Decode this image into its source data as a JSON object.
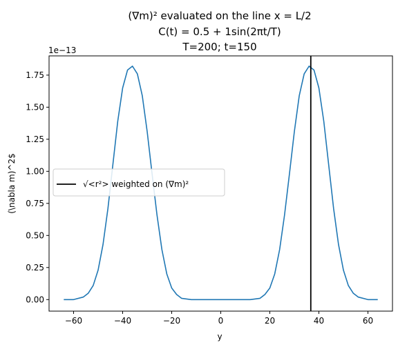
{
  "chart_data": {
    "type": "line",
    "title_lines": [
      "(∇m)² evaluated on the line x = L/2",
      "C(t) = 0.5 + 1sin(2πt/T)",
      "T=200; t=150"
    ],
    "xlabel": "y",
    "ylabel": "(\\nabla m)^2$",
    "y_offset_label": "1e−13",
    "xlim": [
      -70,
      70
    ],
    "ylim": [
      -0.09,
      1.9
    ],
    "xticks": [
      -60,
      -40,
      -20,
      0,
      20,
      40,
      60
    ],
    "xtick_labels": [
      "−60",
      "−40",
      "−20",
      "0",
      "20",
      "40",
      "60"
    ],
    "yticks": [
      0.0,
      0.25,
      0.5,
      0.75,
      1.0,
      1.25,
      1.5,
      1.75
    ],
    "ytick_labels": [
      "0.00",
      "0.25",
      "0.50",
      "0.75",
      "1.00",
      "1.25",
      "1.50",
      "1.75"
    ],
    "series": [
      {
        "color": "#1f77b4",
        "x": [
          -64,
          -60,
          -56,
          -54,
          -52,
          -50,
          -48,
          -46,
          -44,
          -42,
          -40,
          -38,
          -36,
          -34,
          -32,
          -30,
          -28,
          -26,
          -24,
          -22,
          -20,
          -18,
          -16,
          -12,
          -8,
          0,
          8,
          12,
          16,
          18,
          20,
          22,
          24,
          26,
          28,
          30,
          32,
          34,
          36,
          38,
          40,
          42,
          44,
          46,
          48,
          50,
          52,
          54,
          56,
          60,
          64
        ],
        "y": [
          0.0,
          0.0,
          0.02,
          0.05,
          0.11,
          0.23,
          0.43,
          0.71,
          1.05,
          1.39,
          1.65,
          1.79,
          1.82,
          1.76,
          1.59,
          1.31,
          0.98,
          0.66,
          0.39,
          0.2,
          0.09,
          0.04,
          0.01,
          0.0,
          0.0,
          0.0,
          0.0,
          0.0,
          0.01,
          0.04,
          0.09,
          0.2,
          0.39,
          0.66,
          0.98,
          1.31,
          1.59,
          1.76,
          1.82,
          1.79,
          1.65,
          1.39,
          1.05,
          0.71,
          0.43,
          0.23,
          0.11,
          0.05,
          0.02,
          0.0,
          0.0
        ]
      }
    ],
    "vline": {
      "x": 36.7,
      "color": "#000000",
      "label": "√<r²> weighted on (∇m)²"
    },
    "legend": {
      "placement": "center-left"
    },
    "grid": false
  }
}
